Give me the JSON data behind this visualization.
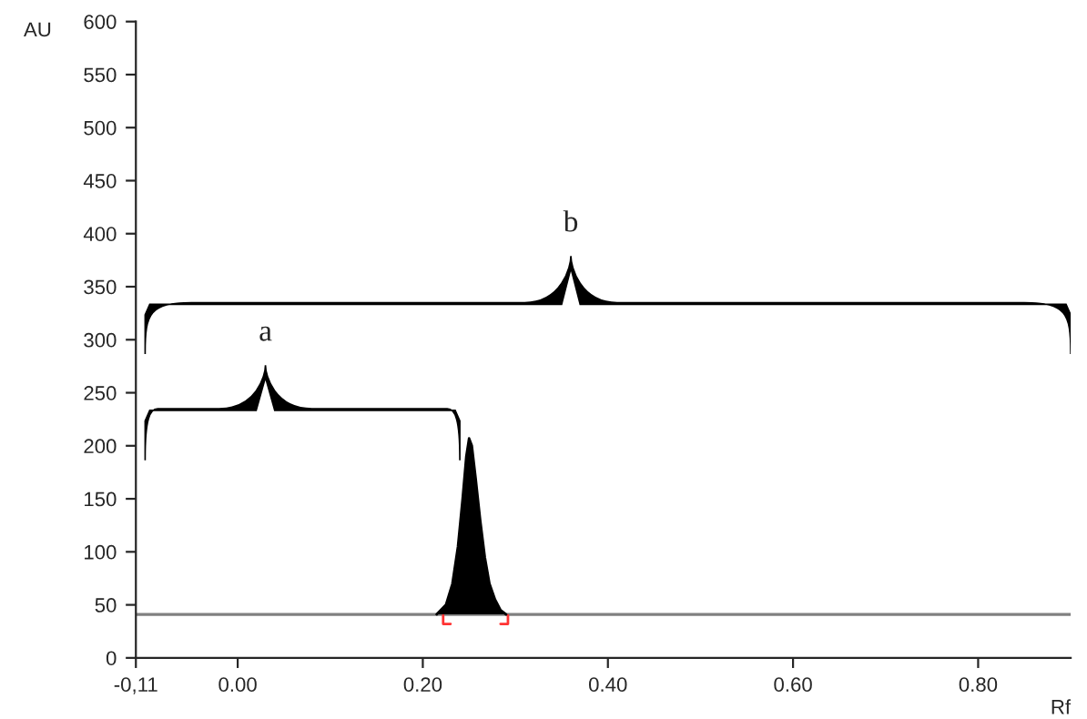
{
  "chart_data": {
    "type": "area",
    "xlabel": "Rf",
    "ylabel": "AU",
    "series": [
      {
        "color": "#000000",
        "x": [
          0.215,
          0.225,
          0.232,
          0.238,
          0.243,
          0.247,
          0.25,
          0.253,
          0.257,
          0.262,
          0.267,
          0.272,
          0.278,
          0.284,
          0.29
        ],
        "values": [
          41,
          50,
          70,
          105,
          150,
          190,
          207,
          200,
          170,
          130,
          95,
          70,
          55,
          45,
          41
        ]
      }
    ],
    "ref_lines": [
      {
        "axis": "y",
        "value": 41,
        "color": "#808080"
      }
    ],
    "annotations": [
      "a",
      "b"
    ],
    "xlim": [
      -0.11,
      0.9
    ],
    "xticks": [
      {
        "value": -0.11,
        "label": "-0,11"
      },
      {
        "value": 0.0,
        "label": "0.00"
      },
      {
        "value": 0.2,
        "label": "0.20"
      },
      {
        "value": 0.4,
        "label": "0.40"
      },
      {
        "value": 0.6,
        "label": "0.60"
      },
      {
        "value": 0.8,
        "label": "0.80"
      }
    ],
    "ylim": [
      0,
      600
    ],
    "yticks": [
      0,
      50,
      100,
      150,
      200,
      250,
      300,
      350,
      400,
      450,
      500,
      550,
      600
    ],
    "grid": false,
    "legend": false
  }
}
